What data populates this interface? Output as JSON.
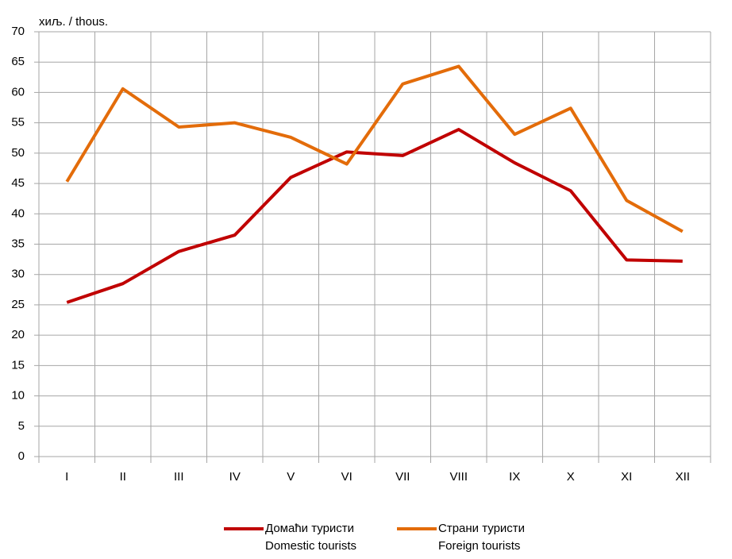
{
  "chart_data": {
    "type": "line",
    "y_label": "хиљ. / thous.",
    "categories": [
      "I",
      "II",
      "III",
      "IV",
      "V",
      "VI",
      "VII",
      "VIII",
      "IX",
      "X",
      "XI",
      "XII"
    ],
    "series": [
      {
        "name": "Домаћи туристи",
        "name_en": "Domestic tourists",
        "color": "#c00000",
        "values": [
          25.4,
          28.5,
          33.8,
          36.5,
          46.0,
          50.2,
          49.6,
          53.9,
          48.4,
          43.8,
          32.4,
          32.2
        ]
      },
      {
        "name": "Страни туристи",
        "name_en": "Foreign tourists",
        "color": "#e36c0a",
        "values": [
          45.3,
          60.6,
          54.3,
          55.0,
          52.6,
          48.2,
          61.4,
          64.3,
          53.1,
          57.4,
          42.2,
          37.1
        ]
      }
    ],
    "ylim": [
      0,
      70
    ],
    "yticks": [
      0,
      5,
      10,
      15,
      20,
      25,
      30,
      35,
      40,
      45,
      50,
      55,
      60,
      65,
      70
    ],
    "grid": true,
    "legend": "bottom"
  }
}
